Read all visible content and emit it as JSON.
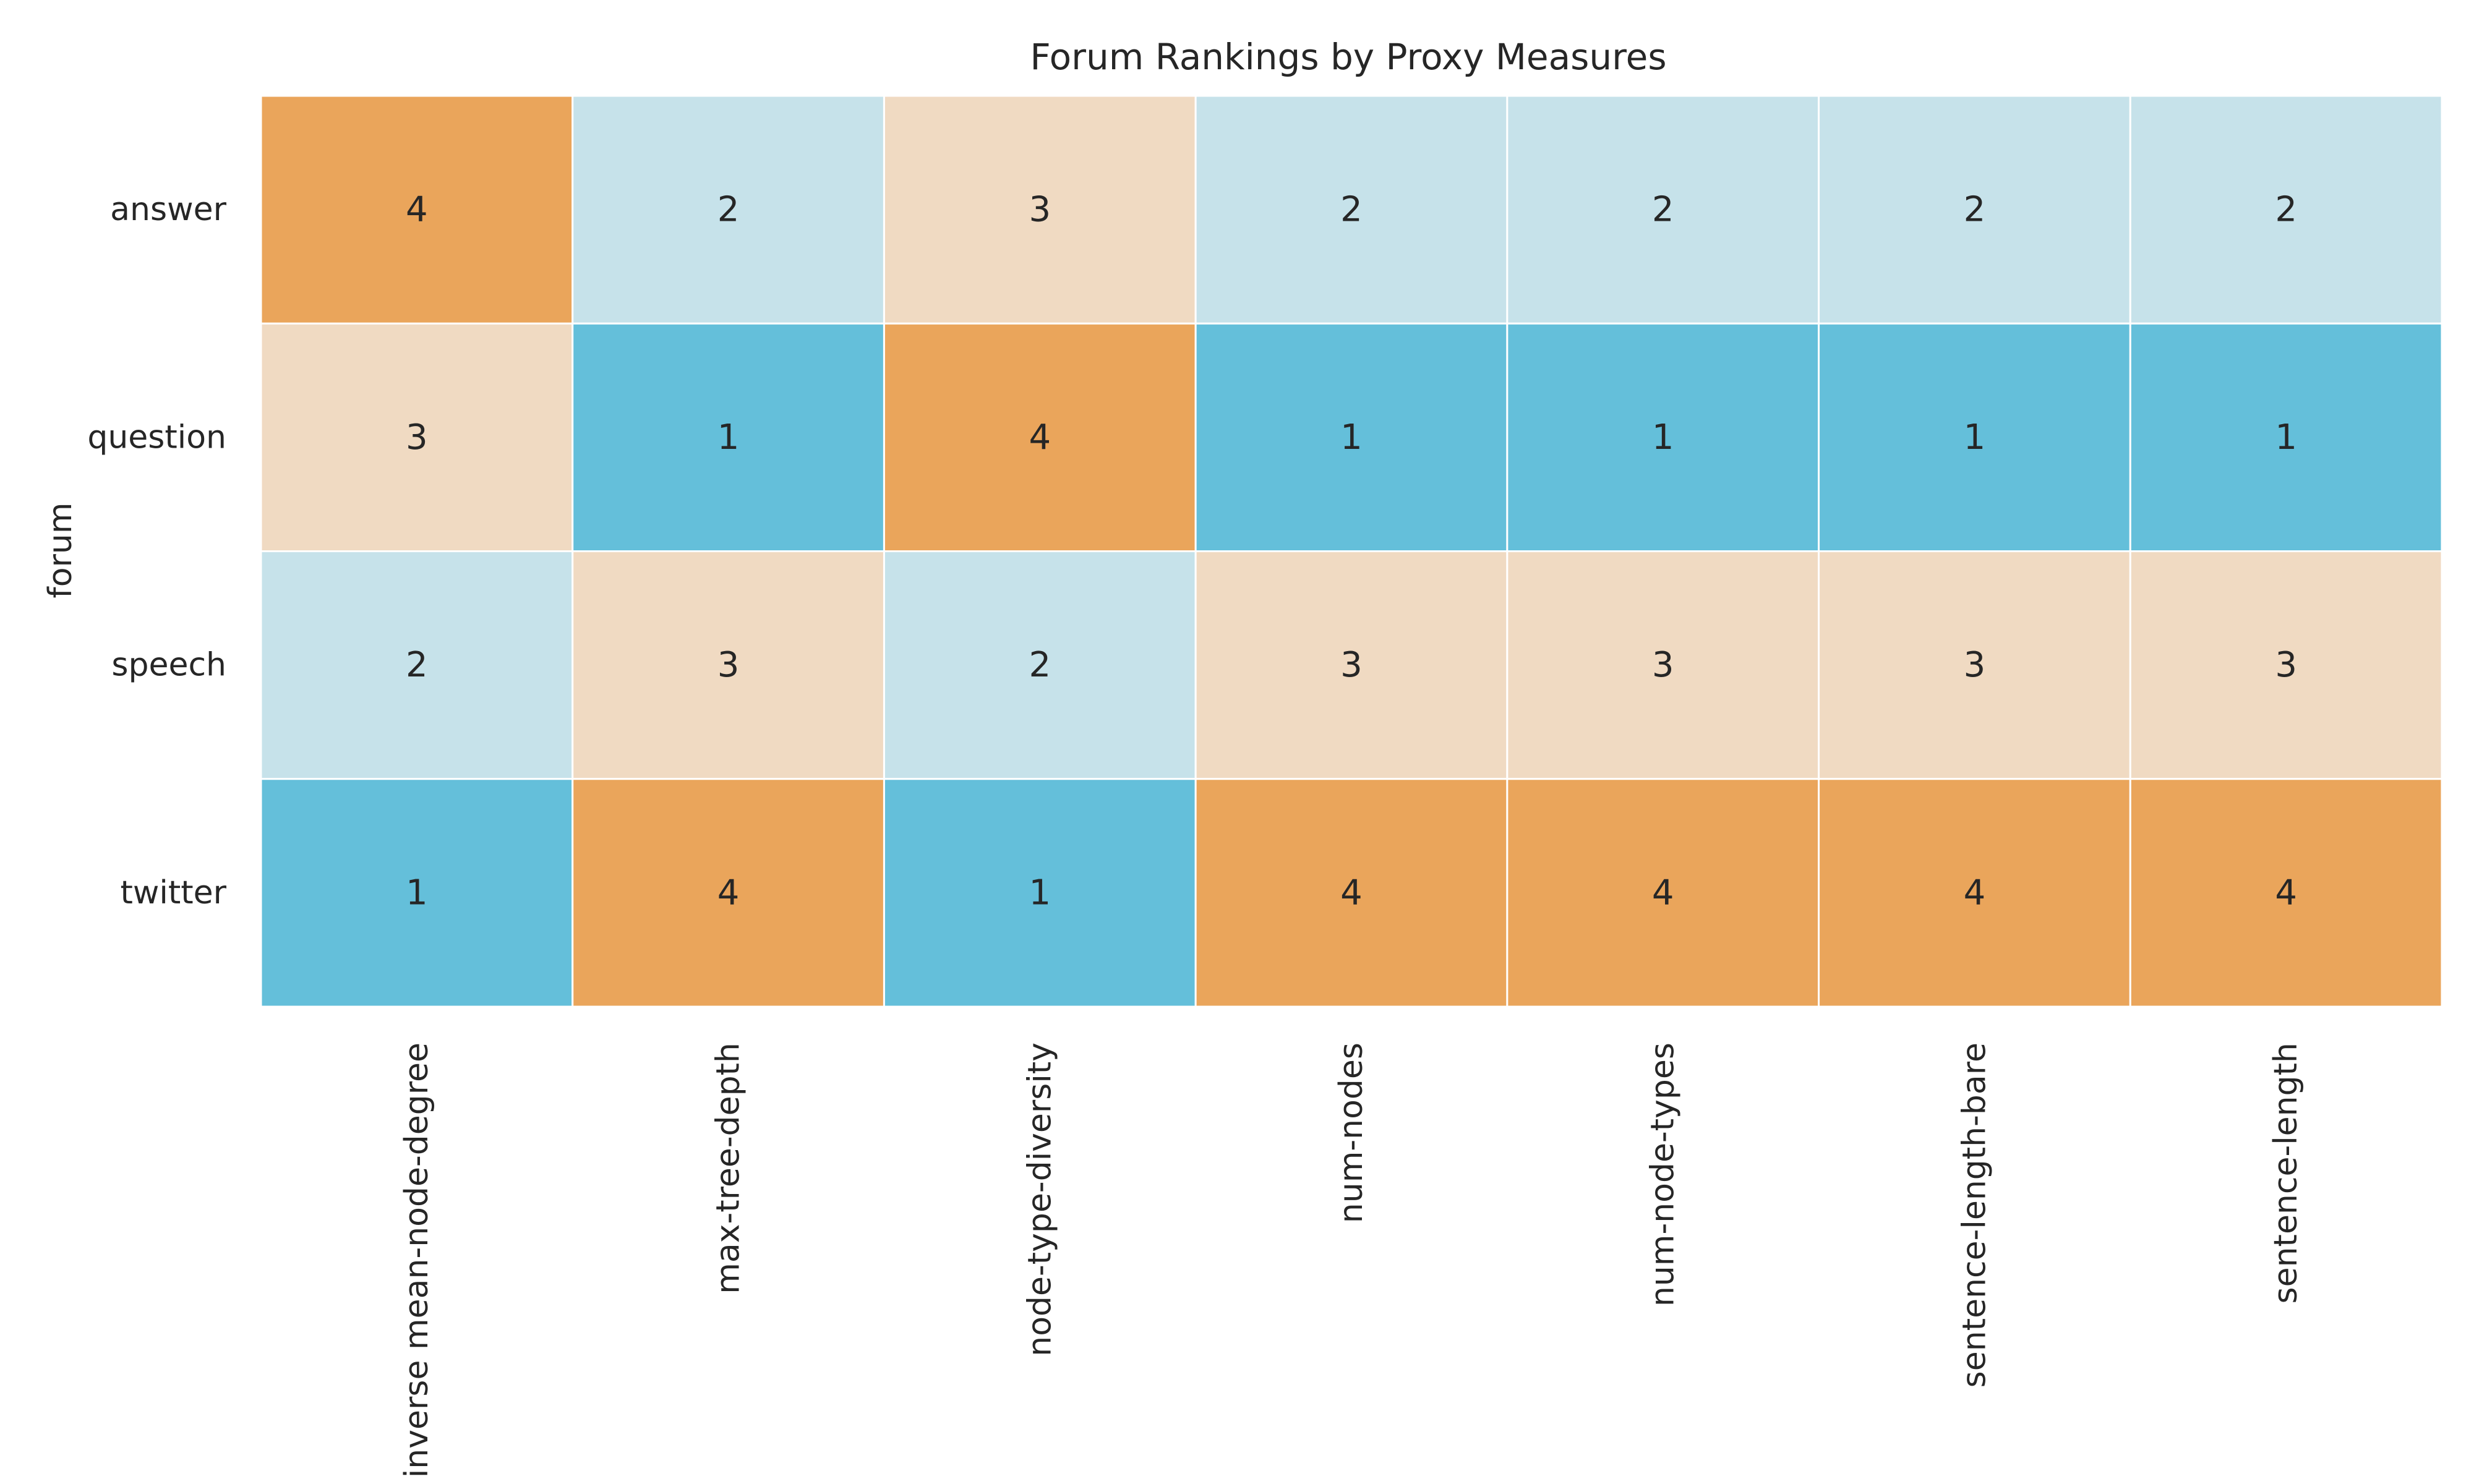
{
  "chart_data": {
    "type": "heatmap",
    "title": "Forum Rankings by Proxy Measures",
    "ylabel": "forum",
    "xlabel": "",
    "rows": [
      "answer",
      "question",
      "speech",
      "twitter"
    ],
    "columns": [
      "inverse mean-node-degree",
      "max-tree-depth",
      "node-type-diversity",
      "num-nodes",
      "num-node-types",
      "sentence-length-bare",
      "sentence-length"
    ],
    "values": [
      [
        4,
        2,
        3,
        2,
        2,
        2,
        2
      ],
      [
        3,
        1,
        4,
        1,
        1,
        1,
        1
      ],
      [
        2,
        3,
        2,
        3,
        3,
        3,
        3
      ],
      [
        1,
        4,
        1,
        4,
        4,
        4,
        4
      ]
    ],
    "annotations_shown": true,
    "colorbar": false,
    "color_scale": {
      "1": "#64bfda",
      "2": "#c6e2ea",
      "3": "#f0dac2",
      "4": "#eaa55b"
    }
  }
}
